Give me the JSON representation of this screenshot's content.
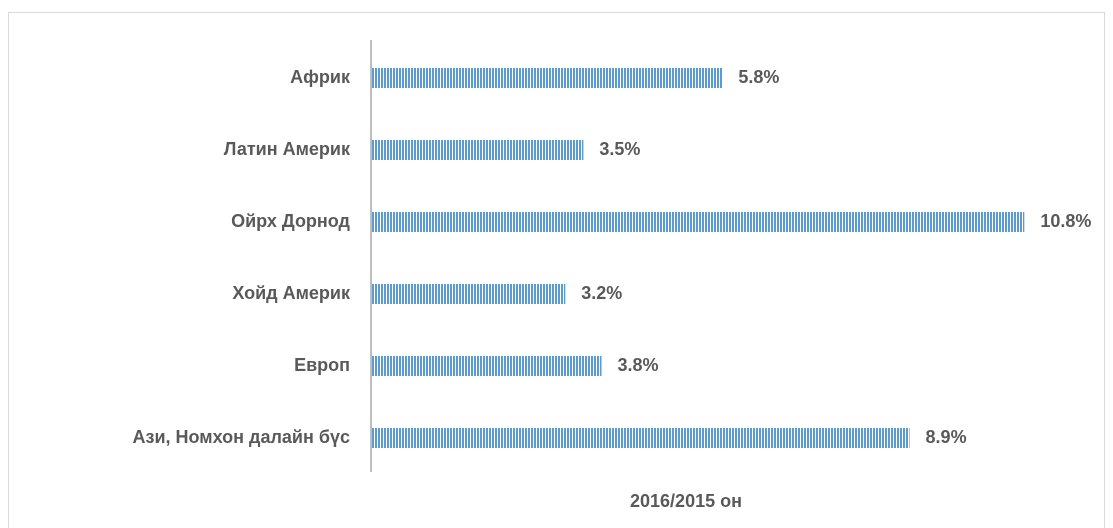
{
  "chart_data": {
    "type": "hbar",
    "x_label": "2016/2015 он",
    "categories": [
      "Африк",
      "Латин Америк",
      "Ойрх Дорнод",
      "Хойд Америк",
      "Европ",
      "Ази, Номхон далайн бүс"
    ],
    "values": [
      5.8,
      3.5,
      10.8,
      3.2,
      3.8,
      8.9
    ],
    "value_labels": [
      "5.8%",
      "3.5%",
      "10.8%",
      "3.2%",
      "3.8%",
      "8.9%"
    ],
    "color": "#5b9bd5",
    "xlim": [
      0,
      12
    ]
  }
}
